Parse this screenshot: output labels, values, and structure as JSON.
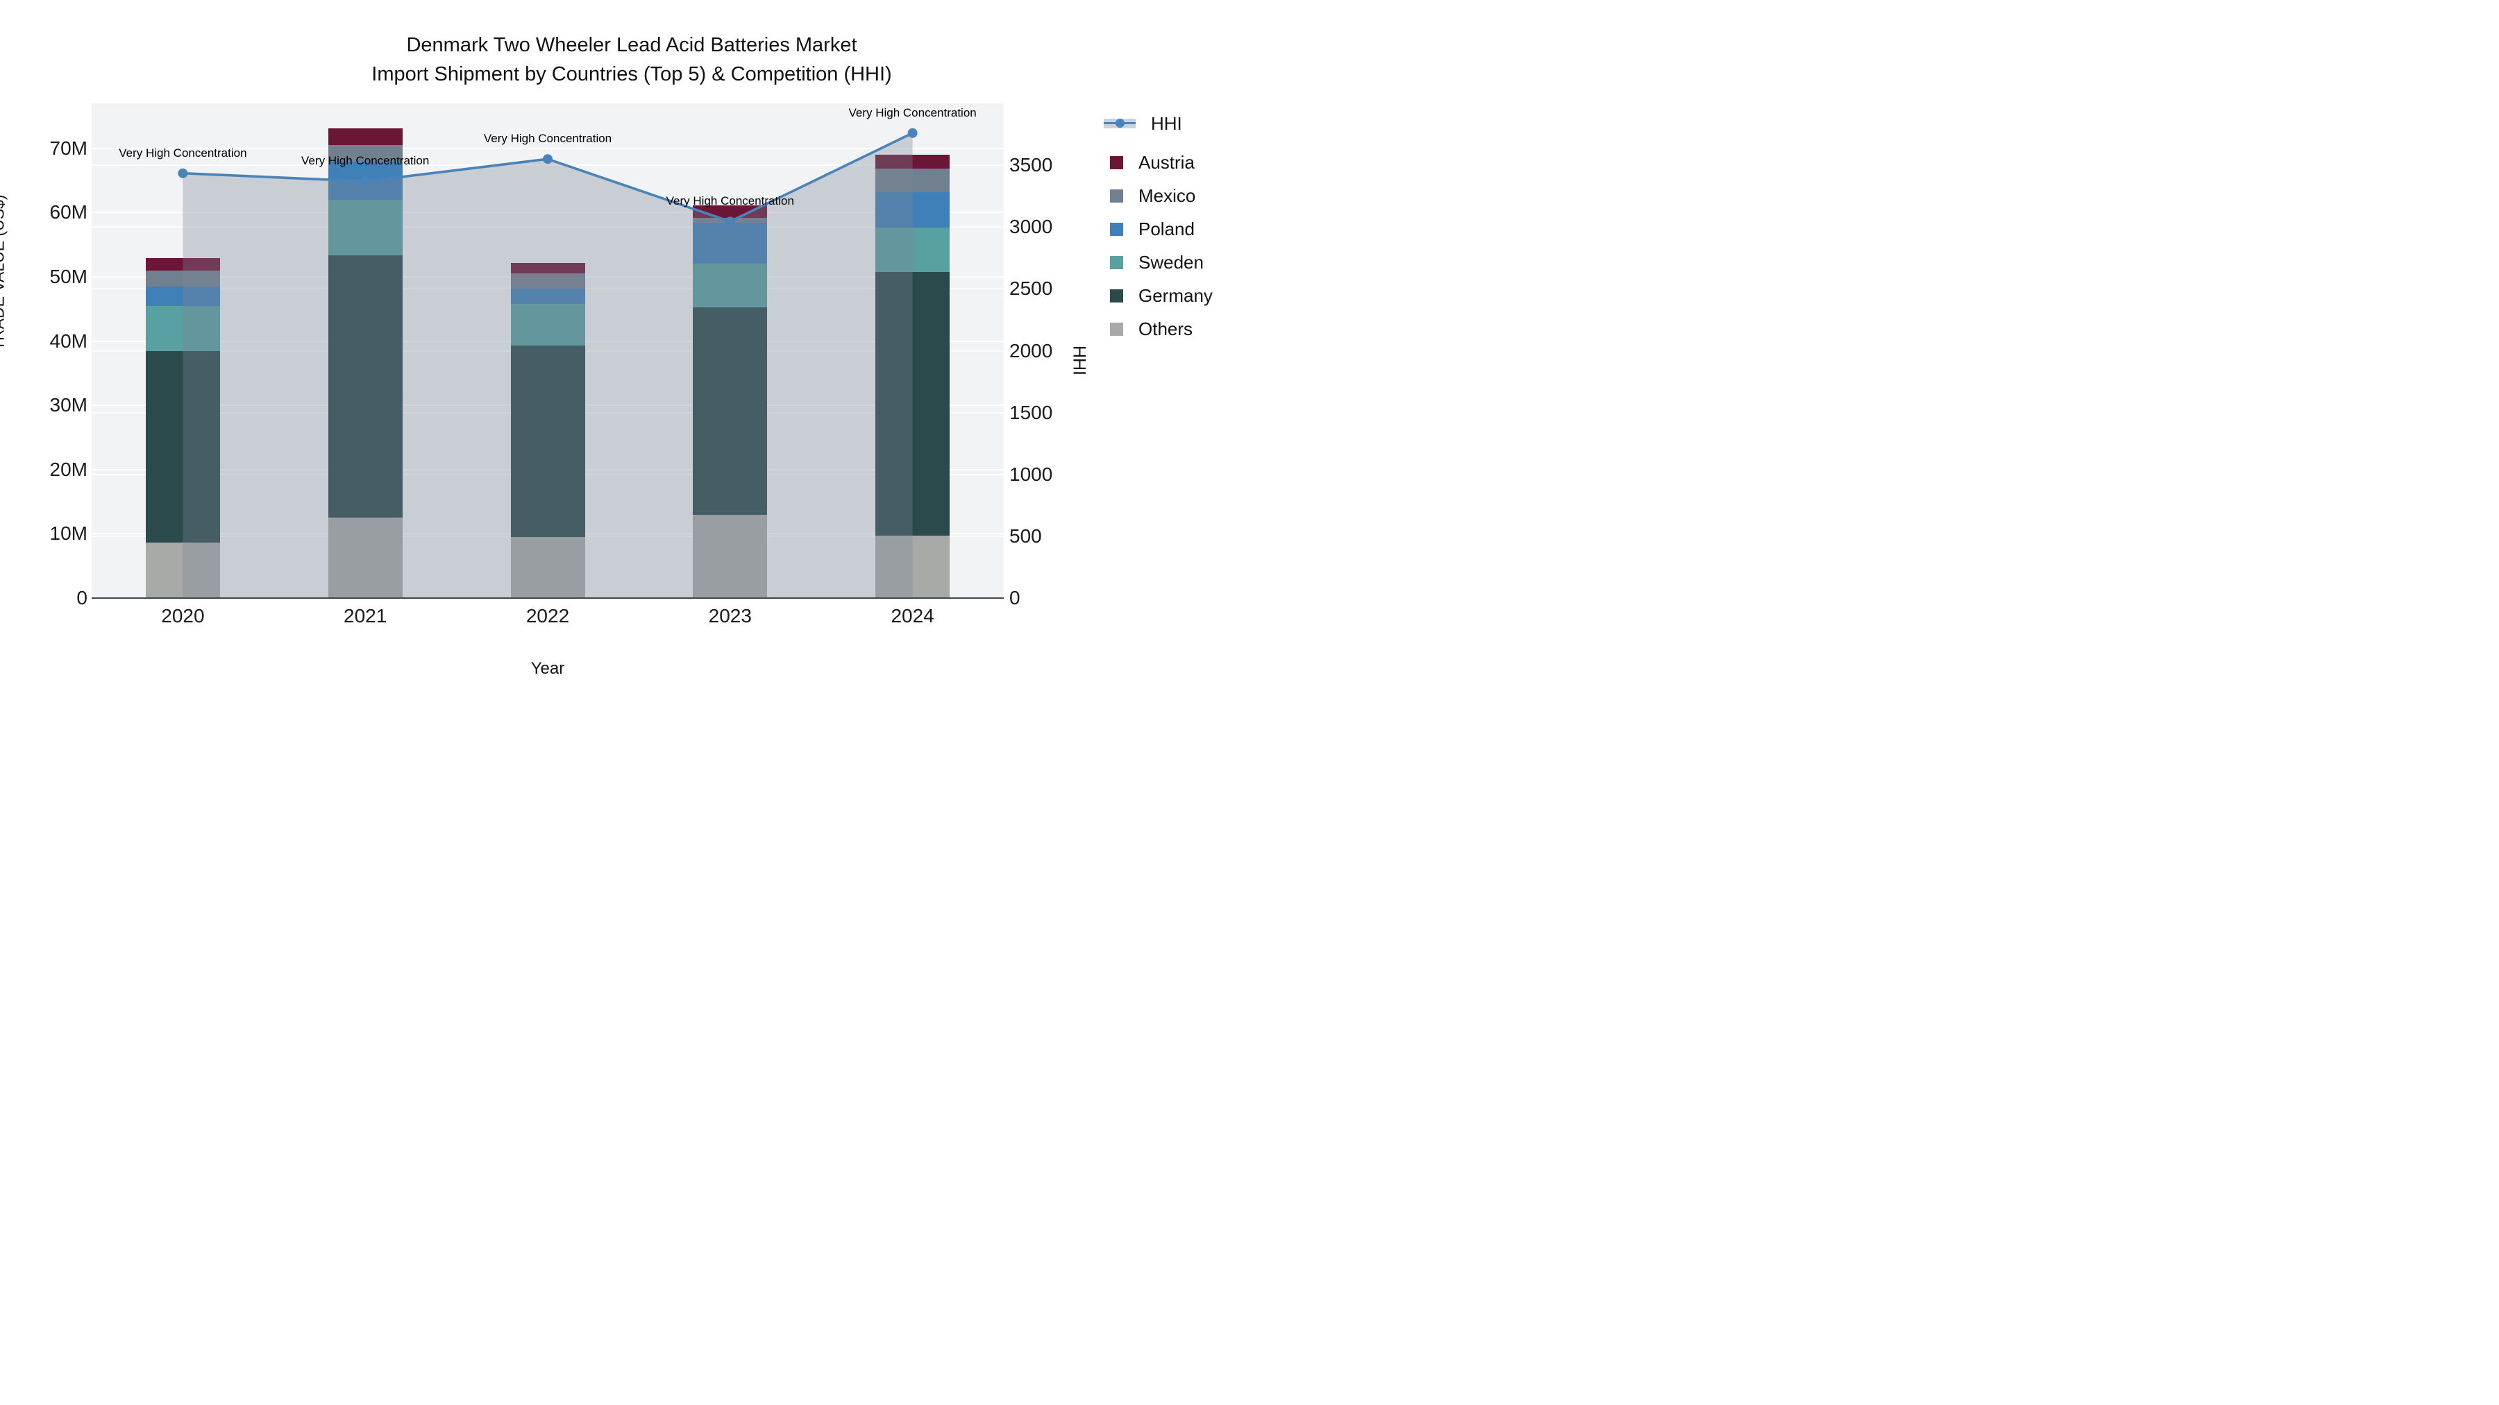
{
  "title_line1": "Denmark Two Wheeler Lead Acid Batteries Market",
  "title_line2": "Import Shipment by Countries (Top 5) & Competition (HHI)",
  "annotation_text": "Very High Concentration",
  "colors": {
    "austria": "#6b1537",
    "mexico": "#71808f",
    "poland": "#4080b8",
    "sweden": "#58a0a1",
    "germany": "#2a4a4c",
    "others": "#a8aaa8",
    "hhi_line": "#4a83b7",
    "hhi_fill": "rgba(122,134,149,0.34)",
    "plot_bg": "#f2f3f4",
    "gridline": "#ffffff",
    "axis_line": "#42474d"
  },
  "legend_items": [
    {
      "label": "HHI",
      "type": "line"
    },
    {
      "label": "Austria",
      "type": "swatch",
      "color_key": "austria"
    },
    {
      "label": "Mexico",
      "type": "swatch",
      "color_key": "mexico"
    },
    {
      "label": "Poland",
      "type": "swatch",
      "color_key": "poland"
    },
    {
      "label": "Sweden",
      "type": "swatch",
      "color_key": "sweden"
    },
    {
      "label": "Germany",
      "type": "swatch",
      "color_key": "germany"
    },
    {
      "label": "Others",
      "type": "swatch",
      "color_key": "others"
    }
  ],
  "chart_data": {
    "type": "bar",
    "subtype": "stacked bars with secondary-axis line + area fill",
    "title": "Denmark Two Wheeler Lead Acid Batteries Market",
    "subtitle": "Import Shipment by Countries (Top 5) & Competition (HHI)",
    "xlabel": "Year",
    "ylabel": "TRADE VALUE (US$)",
    "y2label": "HHI",
    "categories": [
      "2020",
      "2021",
      "2022",
      "2023",
      "2024"
    ],
    "unit": "million US$",
    "stack_order_bottom_to_top": [
      "Others",
      "Germany",
      "Sweden",
      "Poland",
      "Mexico",
      "Austria"
    ],
    "series": [
      {
        "name": "Others",
        "color_key": "others",
        "values": [
          8.6,
          12.5,
          9.5,
          13.0,
          9.7
        ]
      },
      {
        "name": "Germany",
        "color_key": "germany",
        "values": [
          29.8,
          40.8,
          29.8,
          32.2,
          41.1
        ]
      },
      {
        "name": "Sweden",
        "color_key": "sweden",
        "values": [
          7.1,
          8.7,
          6.5,
          6.9,
          6.9
        ]
      },
      {
        "name": "Poland",
        "color_key": "poland",
        "values": [
          3.0,
          5.9,
          2.4,
          6.3,
          5.5
        ]
      },
      {
        "name": "Mexico",
        "color_key": "mexico",
        "values": [
          2.5,
          2.6,
          2.3,
          0.8,
          3.6
        ]
      },
      {
        "name": "Austria",
        "color_key": "austria",
        "values": [
          1.9,
          2.6,
          1.7,
          1.9,
          2.2
        ]
      }
    ],
    "totals": [
      52.9,
      73.1,
      52.2,
      61.1,
      69.0
    ],
    "hhi_series": {
      "name": "HHI",
      "axis": "right",
      "values": [
        3435,
        3370,
        3550,
        3045,
        3760
      ]
    },
    "annotations": [
      {
        "x": "2020",
        "text": "Very High Concentration"
      },
      {
        "x": "2021",
        "text": "Very High Concentration"
      },
      {
        "x": "2022",
        "text": "Very High Concentration"
      },
      {
        "x": "2023",
        "text": "Very High Concentration"
      },
      {
        "x": "2024",
        "text": "Very High Concentration"
      }
    ],
    "y_ticks": [
      "0",
      "10M",
      "20M",
      "30M",
      "40M",
      "50M",
      "60M",
      "70M"
    ],
    "y_tick_values": [
      0,
      10,
      20,
      30,
      40,
      50,
      60,
      70
    ],
    "y2_ticks": [
      "0",
      "500",
      "1000",
      "1500",
      "2000",
      "2500",
      "3000",
      "3500"
    ],
    "y2_tick_values": [
      0,
      500,
      1000,
      1500,
      2000,
      2500,
      3000,
      3500
    ],
    "ylim": [
      0,
      77
    ],
    "y2lim": [
      0,
      4000
    ],
    "grid": true,
    "legend_position": "right"
  }
}
